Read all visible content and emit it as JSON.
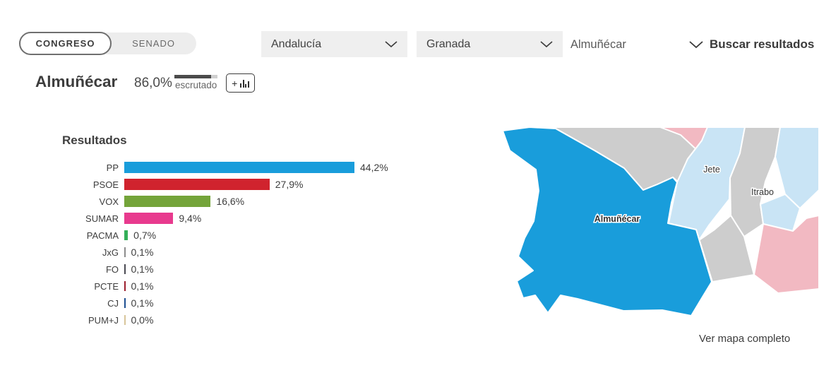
{
  "header": {
    "tabs": [
      {
        "label": "CONGRESO",
        "active": true
      },
      {
        "label": "SENADO",
        "active": false
      }
    ],
    "region_select": {
      "value": "Andalucía"
    },
    "province_select": {
      "value": "Granada"
    },
    "municipality_input": {
      "value": "Almuñécar"
    },
    "search_label": "Buscar resultados"
  },
  "title": {
    "municipality": "Almuñécar",
    "counted_pct": "86,0%",
    "counted_value": 86.0,
    "counted_label": "escrutado",
    "compare_button_plus": "+"
  },
  "results": {
    "heading": "Resultados"
  },
  "chart_data": {
    "type": "bar",
    "orientation": "horizontal",
    "title": "Resultados",
    "categories": [
      "PP",
      "PSOE",
      "VOX",
      "SUMAR",
      "PACMA",
      "JxG",
      "FO",
      "PCTE",
      "CJ",
      "PUM+J"
    ],
    "values": [
      44.2,
      27.9,
      16.6,
      9.4,
      0.7,
      0.1,
      0.1,
      0.1,
      0.1,
      0.0
    ],
    "value_labels": [
      "44,2%",
      "27,9%",
      "16,6%",
      "9,4%",
      "0,7%",
      "0,1%",
      "0,1%",
      "0,1%",
      "0,1%",
      "0,0%"
    ],
    "colors": [
      "#199ddb",
      "#d0232e",
      "#74a43a",
      "#e83a8e",
      "#33af58",
      "#8c8c8c",
      "#4a4a52",
      "#9c1f2e",
      "#1d4f91",
      "#d8c59a"
    ],
    "xlim": [
      0,
      47
    ],
    "grid": false,
    "legend": false
  },
  "map": {
    "labels": {
      "main": "Almuñécar",
      "neighbor1": "Jete",
      "neighbor2": "Itrabo"
    },
    "colors": {
      "win_strong_blue": "#199ddb",
      "win_light_blue": "#c9e4f5",
      "gray": "#cdcdcd",
      "pink": "#f2b9c2"
    },
    "link_label": "Ver mapa completo"
  }
}
